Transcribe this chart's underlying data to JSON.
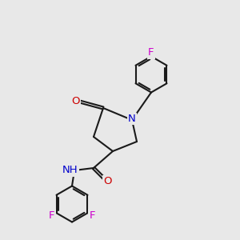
{
  "background_color": "#e8e8e8",
  "bond_color": "#1a1a1a",
  "colors": {
    "N": "#0000cc",
    "O": "#cc0000",
    "F": "#cc00cc",
    "H": "#008080",
    "C": "#1a1a1a"
  },
  "font_size": 9.5,
  "line_width": 1.5
}
